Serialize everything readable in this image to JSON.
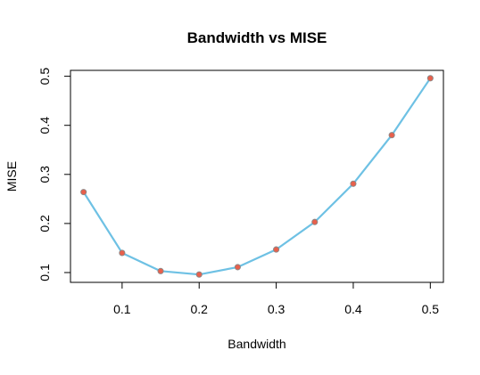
{
  "chart_data": {
    "type": "line",
    "title": "Bandwidth vs MISE",
    "xlabel": "Bandwidth",
    "ylabel": "MISE",
    "x": [
      0.05,
      0.1,
      0.15,
      0.2,
      0.25,
      0.3,
      0.35,
      0.4,
      0.45,
      0.5
    ],
    "series": [
      {
        "values": [
          0.264,
          0.14,
          0.103,
          0.096,
          0.111,
          0.147,
          0.203,
          0.281,
          0.38,
          0.496
        ]
      }
    ],
    "xlim": [
      0.033,
      0.517
    ],
    "ylim": [
      0.08,
      0.512
    ],
    "xticks": [
      0.1,
      0.2,
      0.3,
      0.4,
      0.5
    ],
    "yticks": [
      0.1,
      0.2,
      0.3,
      0.4,
      0.5
    ],
    "xtick_labels": [
      "0.1",
      "0.2",
      "0.3",
      "0.4",
      "0.5"
    ],
    "ytick_labels": [
      "0.1",
      "0.2",
      "0.3",
      "0.4",
      "0.5"
    ],
    "grid": false,
    "legend": "none",
    "colors": {
      "line": "#6EC1E4",
      "marker_fill": "#E8604C",
      "marker_stroke": "#8A8A8A",
      "axis": "#000000"
    }
  }
}
